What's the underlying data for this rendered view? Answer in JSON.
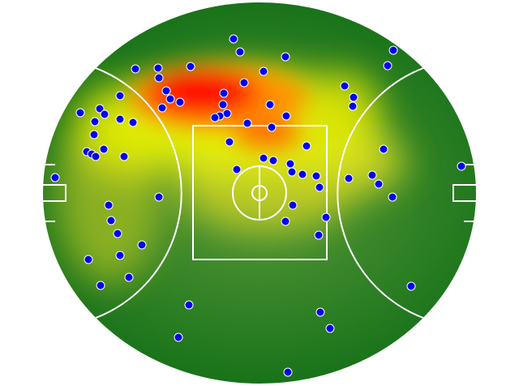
{
  "chart_data": {
    "type": "scatter",
    "color": "#0000ee",
    "x": [
      288,
      296,
      352,
      485,
      478,
      167,
      195,
      235,
      325,
      196,
      301,
      425,
      205,
      148,
      276,
      436,
      210,
      222,
      275,
      200,
      333,
      435,
      123,
      99,
      129,
      280,
      271,
      265,
      353,
      148,
      164,
      117,
      305,
      335,
      116,
      283,
      378,
      473,
      128,
      107,
      113,
      118,
      153,
      325,
      337,
      358,
      292,
      360,
      373,
      390,
      459,
      430,
      68,
      467,
      394,
      569,
      196,
      484,
      134,
      361,
      402,
      137,
      352,
      145,
      393,
      175,
      148,
      109,
      159,
      124,
      507,
      233,
      395,
      407,
      220,
      355
    ],
    "y": [
      48,
      64,
      70,
      62,
      81,
      85,
      84,
      82,
      88,
      96,
      102,
      106,
      112,
      118,
      115,
      120,
      122,
      126,
      129,
      133,
      129,
      131,
      134,
      139,
      141,
      140,
      143,
      145,
      143,
      147,
      151,
      150,
      152,
      157,
      166,
      175,
      180,
      184,
      184,
      187,
      190,
      193,
      193,
      195,
      198,
      202,
      209,
      212,
      215,
      217,
      216,
      220,
      219,
      227,
      231,
      205,
      243,
      243,
      253,
      253,
      268,
      272,
      273,
      288,
      290,
      302,
      315,
      320,
      342,
      352,
      353,
      376,
      385,
      405,
      416,
      459
    ]
  }
}
